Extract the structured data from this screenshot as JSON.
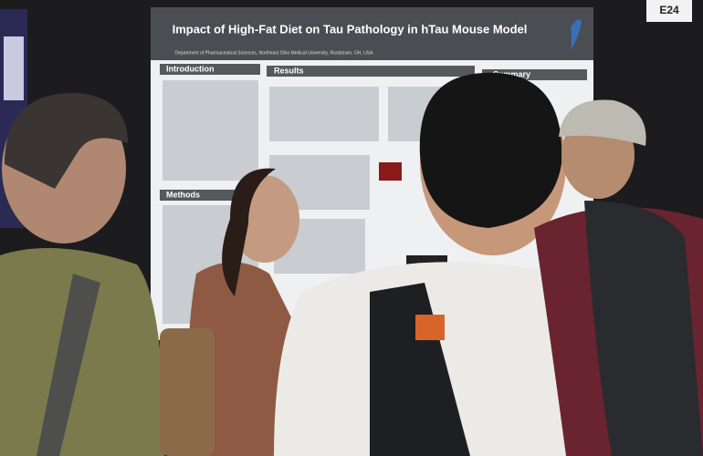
{
  "booth_label": "E24",
  "poster": {
    "title": "Impact of High-Fat Diet on Tau Pathology in hTau Mouse Model",
    "affiliation": "Department of Pharmaceutical Sciences, Northeast Ohio Medical University, Rootstown, OH, USA",
    "sections": [
      "Introduction",
      "Results",
      "Summary",
      "Methods"
    ]
  }
}
